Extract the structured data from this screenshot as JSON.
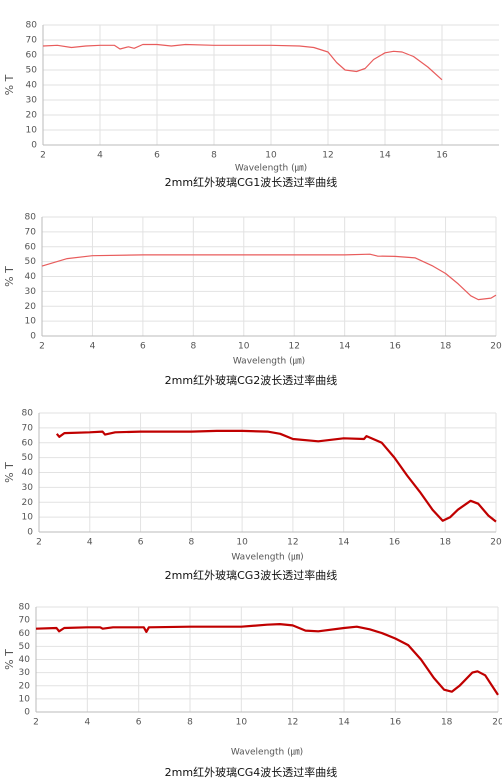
{
  "chart_data": [
    {
      "type": "line",
      "title": "2mm红外玻璃CG1波长透过率曲线",
      "xlabel": "Wavelength (㎛)",
      "ylabel": "% T",
      "xlim": [
        2,
        18
      ],
      "xticks": [
        2,
        4,
        6,
        8,
        10,
        12,
        14,
        16
      ],
      "ylim": [
        0,
        80
      ],
      "yticks": [
        0,
        10,
        20,
        30,
        40,
        50,
        60,
        70,
        80
      ],
      "grid": true,
      "color": "#e85c5c",
      "x": [
        2,
        2.5,
        3,
        3.5,
        4,
        4.5,
        4.7,
        5,
        5.2,
        5.5,
        6,
        6.5,
        7,
        8,
        9,
        10,
        11,
        11.5,
        12,
        12.3,
        12.6,
        13,
        13.3,
        13.6,
        14,
        14.3,
        14.6,
        15,
        15.5,
        16
      ],
      "values": [
        66,
        66.5,
        65,
        66,
        66.5,
        66.5,
        64,
        65.5,
        64.5,
        67,
        67,
        66,
        67,
        66.5,
        66.5,
        66.5,
        66,
        65,
        62,
        55,
        50,
        49,
        51,
        57,
        61.5,
        62.5,
        62,
        59,
        52,
        43.5
      ]
    },
    {
      "type": "line",
      "title": "2mm红外玻璃CG2波长透过率曲线",
      "xlabel": "Wavelength (㎛)",
      "ylabel": "% T",
      "xlim": [
        2,
        20
      ],
      "xticks": [
        2,
        4,
        6,
        8,
        10,
        12,
        14,
        16,
        18,
        20
      ],
      "ylim": [
        0,
        80
      ],
      "yticks": [
        0,
        10,
        20,
        30,
        40,
        50,
        60,
        70,
        80
      ],
      "grid": true,
      "color": "#e85c5c",
      "x": [
        2,
        3,
        4,
        6,
        10,
        14,
        15,
        15.3,
        16,
        16.8,
        17.5,
        18,
        18.5,
        19,
        19.3,
        19.8,
        20
      ],
      "values": [
        47,
        52,
        54,
        54.5,
        54.5,
        54.5,
        55,
        53.7,
        53.5,
        52.5,
        47,
        42,
        35,
        27,
        24.5,
        25.5,
        27.5
      ]
    },
    {
      "type": "line",
      "title": "2mm红外玻璃CG3波长透过率曲线",
      "xlabel": "Wavelength (㎛)",
      "ylabel": "% T",
      "xlim": [
        2,
        20
      ],
      "xticks": [
        2,
        4,
        6,
        8,
        10,
        12,
        14,
        16,
        18,
        20
      ],
      "ylim": [
        0,
        80
      ],
      "yticks": [
        0,
        10,
        20,
        30,
        40,
        50,
        60,
        70,
        80
      ],
      "grid": true,
      "color": "#c00000",
      "x": [
        2.7,
        2.8,
        3,
        4,
        4.5,
        4.6,
        5,
        6,
        7,
        8,
        9,
        10,
        11,
        11.5,
        12,
        13,
        14,
        14.8,
        14.9,
        15.5,
        16,
        16.5,
        17,
        17.5,
        17.9,
        18.2,
        18.5,
        19,
        19.3,
        19.7,
        20
      ],
      "values": [
        66,
        64,
        66.5,
        67,
        67.5,
        65.5,
        67,
        67.5,
        67.5,
        67.5,
        68,
        68,
        67.5,
        66,
        62.5,
        61,
        63,
        62.5,
        64.5,
        60,
        50,
        38,
        27,
        15,
        7.5,
        10,
        15,
        21,
        19,
        11,
        7
      ]
    },
    {
      "type": "line",
      "title": "2mm红外玻璃CG4波长透过率曲线",
      "xlabel": "Wavelength (㎛)",
      "ylabel": "% T",
      "xlim": [
        2,
        20
      ],
      "xticks": [
        2,
        4,
        6,
        8,
        10,
        12,
        14,
        16,
        18,
        20
      ],
      "ylim": [
        0,
        80
      ],
      "yticks": [
        0,
        10,
        20,
        30,
        40,
        50,
        60,
        70,
        80
      ],
      "grid": true,
      "color": "#c00000",
      "x": [
        2,
        2.8,
        2.9,
        3.1,
        4,
        4.5,
        4.6,
        5,
        6,
        6.2,
        6.3,
        6.4,
        8,
        10,
        11,
        11.5,
        12,
        12.5,
        13,
        14,
        14.5,
        15,
        15.5,
        16,
        16.5,
        17,
        17.5,
        17.9,
        18.2,
        18.5,
        19,
        19.2,
        19.5,
        20
      ],
      "values": [
        63.5,
        64,
        61.5,
        64,
        64.5,
        64.5,
        63.5,
        64.5,
        64.5,
        64.5,
        61,
        64.5,
        65,
        65,
        66.5,
        67,
        66,
        62,
        61.5,
        64,
        65,
        63,
        60,
        56,
        51,
        40,
        26,
        17,
        15.5,
        20,
        30,
        31,
        28,
        13
      ]
    }
  ]
}
